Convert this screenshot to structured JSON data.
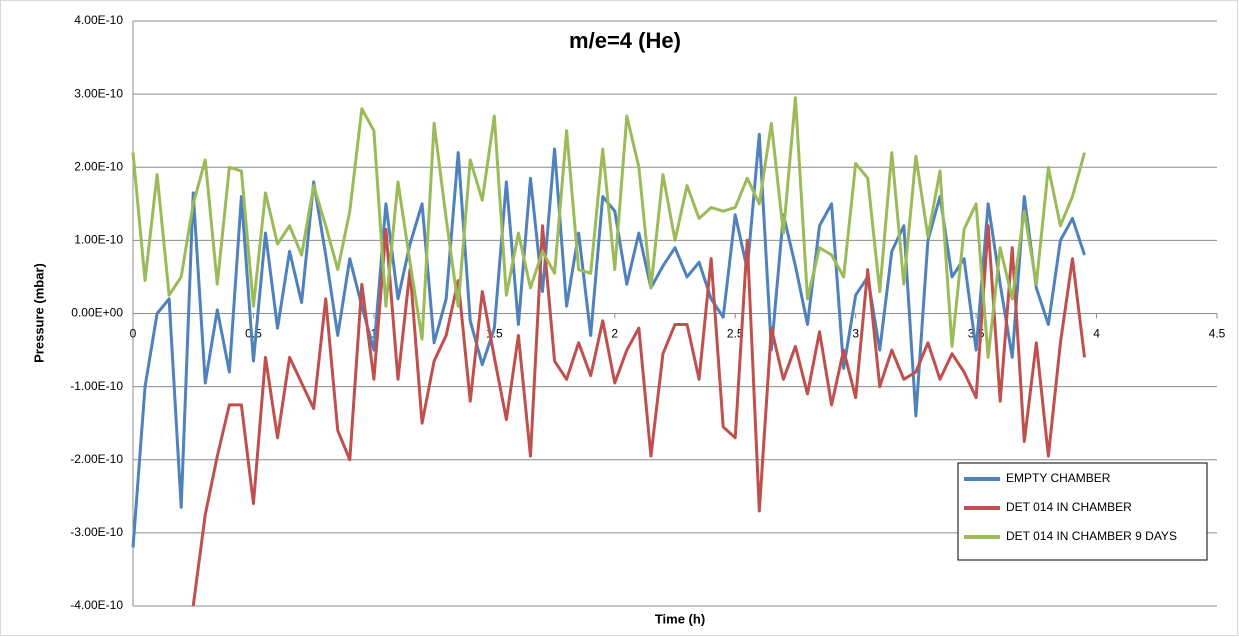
{
  "chart_data": {
    "type": "line",
    "title": "m/e=4 (He)",
    "x_label": "Time (h)",
    "y_label": "Pressure (mbar)",
    "x": [
      0,
      0.05,
      0.1,
      0.15,
      0.2,
      0.25,
      0.3,
      0.35,
      0.4,
      0.45,
      0.5,
      0.55,
      0.6,
      0.65,
      0.7,
      0.75,
      0.8,
      0.85,
      0.9,
      0.95,
      1,
      1.05,
      1.1,
      1.15,
      1.2,
      1.25,
      1.3,
      1.35,
      1.4,
      1.45,
      1.5,
      1.55,
      1.6,
      1.65,
      1.7,
      1.75,
      1.8,
      1.85,
      1.9,
      1.95,
      2,
      2.05,
      2.1,
      2.15,
      2.2,
      2.25,
      2.3,
      2.35,
      2.4,
      2.45,
      2.5,
      2.55,
      2.6,
      2.65,
      2.7,
      2.75,
      2.8,
      2.85,
      2.9,
      2.95,
      3,
      3.05,
      3.1,
      3.15,
      3.2,
      3.25,
      3.3,
      3.35,
      3.4,
      3.45,
      3.5,
      3.55,
      3.6,
      3.65,
      3.7,
      3.75,
      3.8,
      3.85,
      3.9,
      3.95
    ],
    "series": [
      {
        "name": "EMPTY CHAMBER",
        "color": "#4f81bd",
        "values": [
          -3.2e-10,
          -1e-10,
          0.0,
          2e-11,
          -2.65e-10,
          1.65e-10,
          -9.5e-11,
          5e-12,
          -8e-11,
          1.6e-10,
          -6.5e-11,
          1.1e-10,
          -2e-11,
          8.5e-11,
          1.5e-11,
          1.8e-10,
          8e-11,
          -3e-11,
          7.5e-11,
          1e-11,
          -5e-11,
          1.5e-10,
          2e-11,
          9.5e-11,
          1.5e-10,
          -4e-11,
          2e-11,
          2.2e-10,
          -1e-11,
          -7e-11,
          -2e-11,
          1.8e-10,
          -1.5e-11,
          1.85e-10,
          3e-11,
          2.25e-10,
          1e-11,
          1.1e-10,
          -3e-11,
          1.6e-10,
          1.4e-10,
          4e-11,
          1.1e-10,
          3.5e-11,
          6.5e-11,
          9e-11,
          5e-11,
          7e-11,
          2e-11,
          -5e-12,
          1.35e-10,
          6e-11,
          2.45e-10,
          -5e-11,
          1.35e-10,
          6.5e-11,
          -1.5e-11,
          1.2e-10,
          1.5e-10,
          -7.5e-11,
          2.5e-11,
          5e-11,
          -5e-11,
          8.5e-11,
          1.2e-10,
          -1.4e-10,
          1e-10,
          1.6e-10,
          5e-11,
          7.5e-11,
          -5e-11,
          1.5e-10,
          4e-11,
          -6e-11,
          1.6e-10,
          3.5e-11,
          -1.5e-11,
          1e-10,
          1.3e-10,
          8e-11
        ]
      },
      {
        "name": "DET 014 IN CHAMBER",
        "color": "#c0504d",
        "values": [
          null,
          null,
          null,
          null,
          null,
          -4e-10,
          -2.75e-10,
          -1.95e-10,
          -1.25e-10,
          -1.25e-10,
          -2.6e-10,
          -6e-11,
          -1.7e-10,
          -6e-11,
          -9.5e-11,
          -1.3e-10,
          2e-11,
          -1.6e-10,
          -2e-10,
          4e-11,
          -9e-11,
          1.15e-10,
          -9e-11,
          6e-11,
          -1.5e-10,
          -6.5e-11,
          -3e-11,
          4.5e-11,
          -1.2e-10,
          3e-11,
          -6e-11,
          -1.45e-10,
          -3e-11,
          -1.95e-10,
          1.2e-10,
          -6.5e-11,
          -9e-11,
          -4e-11,
          -8.5e-11,
          -1e-11,
          -9.5e-11,
          -5e-11,
          -2e-11,
          -1.95e-10,
          -5.5e-11,
          -1.5e-11,
          -1.5e-11,
          -9e-11,
          7.5e-11,
          -1.55e-10,
          -1.7e-10,
          1e-10,
          -2.7e-10,
          -2e-11,
          -9e-11,
          -4.5e-11,
          -1.1e-10,
          -2.5e-11,
          -1.25e-10,
          -5e-11,
          -1.15e-10,
          6e-11,
          -1e-10,
          -5e-11,
          -9e-11,
          -8e-11,
          -4e-11,
          -9e-11,
          -5.5e-11,
          -8e-11,
          -1.15e-10,
          1.2e-10,
          -1.2e-10,
          9e-11,
          -1.75e-10,
          -4e-11,
          -1.95e-10,
          -4e-11,
          7.5e-11,
          -6e-11
        ]
      },
      {
        "name": "DET 014 IN CHAMBER 9 DAYS",
        "color": "#9bbb59",
        "values": [
          2.2e-10,
          4.5e-11,
          1.9e-10,
          2.5e-11,
          5e-11,
          1.5e-10,
          2.1e-10,
          4e-11,
          2e-10,
          1.95e-10,
          1e-11,
          1.65e-10,
          9.5e-11,
          1.2e-10,
          8e-11,
          1.75e-10,
          1.2e-10,
          6e-11,
          1.4e-10,
          2.8e-10,
          2.5e-10,
          1e-11,
          1.8e-10,
          7e-11,
          -3.5e-11,
          2.6e-10,
          1.3e-10,
          1e-11,
          2.1e-10,
          1.55e-10,
          2.7e-10,
          2.5e-11,
          1.1e-10,
          3.5e-11,
          8.5e-11,
          5.5e-11,
          2.5e-10,
          6e-11,
          5.5e-11,
          2.25e-10,
          6e-11,
          2.7e-10,
          2e-10,
          3.5e-11,
          1.9e-10,
          1e-10,
          1.75e-10,
          1.3e-10,
          1.45e-10,
          1.4e-10,
          1.45e-10,
          1.85e-10,
          1.5e-10,
          2.6e-10,
          1.1e-10,
          2.95e-10,
          2e-11,
          9e-11,
          8e-11,
          5e-11,
          2.05e-10,
          1.85e-10,
          3e-11,
          2.2e-10,
          4e-11,
          2.15e-10,
          1.05e-10,
          1.95e-10,
          -4.5e-11,
          1.15e-10,
          1.5e-10,
          -6e-11,
          9e-11,
          2e-11,
          1.4e-10,
          4e-11,
          2e-10,
          1.2e-10,
          1.6e-10,
          2.2e-10
        ]
      }
    ],
    "xlim": [
      0,
      4.5
    ],
    "xticks": [
      0,
      0.5,
      1,
      1.5,
      2,
      2.5,
      3,
      3.5,
      4,
      4.5
    ],
    "ylim": [
      -4e-10,
      4e-10
    ],
    "yticks": [
      {
        "value": -4e-10,
        "label": "-4.00E-10"
      },
      {
        "value": -3e-10,
        "label": "-3.00E-10"
      },
      {
        "value": -2e-10,
        "label": "-2.00E-10"
      },
      {
        "value": -1e-10,
        "label": "-1.00E-10"
      },
      {
        "value": 0,
        "label": "0.00E+00"
      },
      {
        "value": 1e-10,
        "label": "1.00E-10"
      },
      {
        "value": 2e-10,
        "label": "2.00E-10"
      },
      {
        "value": 3e-10,
        "label": "3.00E-10"
      },
      {
        "value": 4e-10,
        "label": "4.00E-10"
      }
    ],
    "grid": true,
    "legend": "lower right"
  }
}
